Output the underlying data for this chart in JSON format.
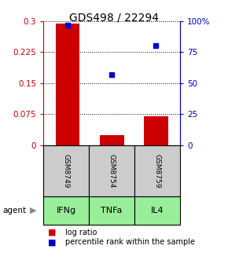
{
  "title": "GDS498 / 22294",
  "samples": [
    "GSM8749",
    "GSM8754",
    "GSM8759"
  ],
  "agents": [
    "IFNg",
    "TNFa",
    "IL4"
  ],
  "log_ratios": [
    0.295,
    0.025,
    0.07
  ],
  "percentile_ranks": [
    97,
    57,
    80
  ],
  "bar_color": "#cc0000",
  "dot_color": "#0000cc",
  "left_yticks": [
    0,
    0.075,
    0.15,
    0.225,
    0.3
  ],
  "right_yticks": [
    0,
    25,
    50,
    75,
    100
  ],
  "right_yticklabels": [
    "0",
    "25",
    "50",
    "75",
    "100%"
  ],
  "ylim": [
    0,
    0.3
  ],
  "percentile_ylim": [
    0,
    100
  ],
  "sample_box_color": "#cccccc",
  "agent_box_color": "#99ee99",
  "left_axis_color": "#cc0000",
  "right_axis_color": "#0000cc",
  "title_fontsize": 10,
  "bar_width": 0.55,
  "legend_items": [
    "log ratio",
    "percentile rank within the sample"
  ],
  "agent_arrow_label": "agent"
}
